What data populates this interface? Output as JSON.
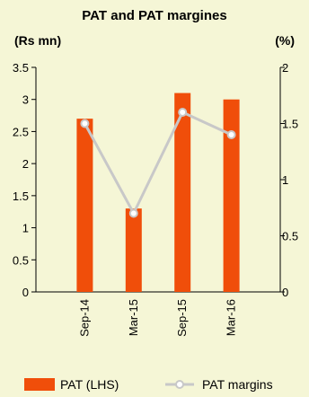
{
  "chart_data": {
    "type": "bar+line",
    "title": "PAT and PAT margines",
    "y_left_label": "(Rs mn)",
    "y_right_label": "(%)",
    "categories": [
      "Sep-14",
      "Mar-15",
      "Sep-15",
      "Mar-16"
    ],
    "y_left_ticks": [
      "0",
      "0.5",
      "1",
      "1.5",
      "2",
      "2.5",
      "3",
      "3.5"
    ],
    "y_right_ticks": [
      "0",
      "0.5",
      "1",
      "1.5",
      "2"
    ],
    "y_left_lim": [
      0,
      3.5
    ],
    "y_right_lim": [
      0,
      2
    ],
    "series": [
      {
        "name": "PAT (LHS)",
        "type": "bar",
        "axis": "left",
        "values": [
          2.7,
          1.3,
          3.1,
          3.0
        ],
        "color": "#f04e0a"
      },
      {
        "name": "PAT margins",
        "type": "line",
        "axis": "right",
        "values": [
          1.5,
          0.7,
          1.6,
          1.4
        ],
        "color": "#c8c8c8"
      }
    ],
    "grid": false,
    "legend_position": "bottom"
  }
}
